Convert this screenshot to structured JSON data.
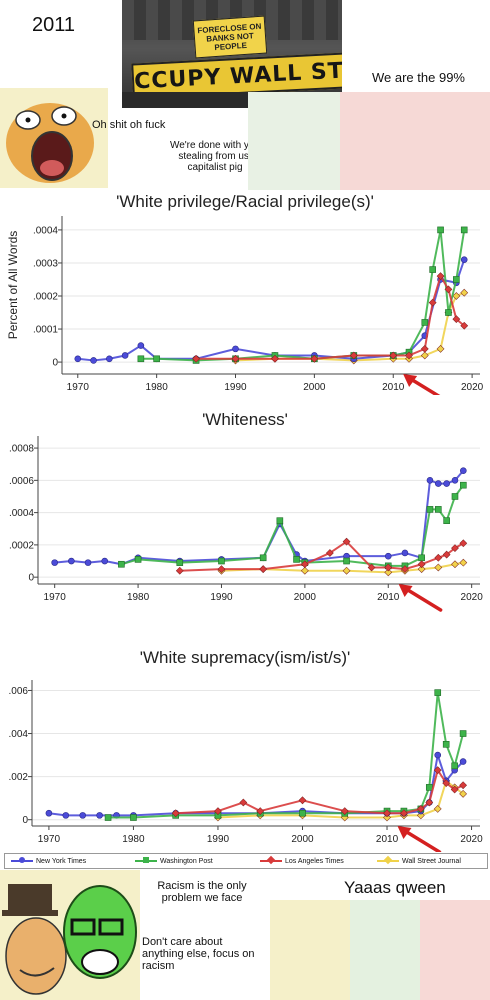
{
  "top_meme": {
    "year": "2011",
    "sign_text": "FORECLOSE ON BANKS NOT PEOPLE",
    "banner_text": "CCUPY WALL ST",
    "exclaim": "Oh shit oh fuck",
    "speech": "We're done with you stealing from us, capitalist pig",
    "slogan": "We are the 99%"
  },
  "ylabel": "Percent of All Words",
  "chart_data": [
    {
      "type": "line",
      "title": "'White privilege/Racial privilege(s)'",
      "xlabel": "",
      "ylabel": "Percent of All Words",
      "xlim": [
        1968,
        2021
      ],
      "ylim": [
        -3e-05,
        0.00043
      ],
      "xticks": [
        "1970",
        "1980",
        "1990",
        "2000",
        "2010",
        "2020"
      ],
      "yticks": [
        ".0004",
        ".0003",
        ".0002",
        ".0001",
        "0"
      ],
      "series": [
        {
          "name": "New York Times",
          "color": "#4b4bd8",
          "x": [
            1970,
            1972,
            1974,
            1976,
            1978,
            1980,
            1985,
            1990,
            1995,
            2000,
            2005,
            2010,
            2012,
            2014,
            2016,
            2018,
            2019
          ],
          "y": [
            1e-05,
            5e-06,
            1e-05,
            2e-05,
            5e-05,
            1e-05,
            1e-05,
            4e-05,
            2e-05,
            2e-05,
            1e-05,
            2e-05,
            3e-05,
            8e-05,
            0.00025,
            0.00024,
            0.00031
          ]
        },
        {
          "name": "Washington Post",
          "color": "#3db34a",
          "x": [
            1978,
            1980,
            1985,
            1990,
            1995,
            2000,
            2005,
            2010,
            2012,
            2014,
            2015,
            2016,
            2017,
            2018,
            2019
          ],
          "y": [
            1e-05,
            1e-05,
            5e-06,
            1e-05,
            2e-05,
            1e-05,
            2e-05,
            2e-05,
            3e-05,
            0.00012,
            0.00028,
            0.0004,
            0.00015,
            0.00025,
            0.0004
          ]
        },
        {
          "name": "Los Angeles Times",
          "color": "#d83b3b",
          "x": [
            1985,
            1990,
            1995,
            2000,
            2005,
            2010,
            2012,
            2014,
            2015,
            2016,
            2017,
            2018,
            2019
          ],
          "y": [
            1e-05,
            1e-05,
            1e-05,
            1e-05,
            2e-05,
            2e-05,
            2e-05,
            4e-05,
            0.00018,
            0.00026,
            0.00022,
            0.00013,
            0.00011
          ]
        },
        {
          "name": "Wall Street Journal",
          "color": "#f0d24a",
          "x": [
            1990,
            1995,
            2000,
            2005,
            2010,
            2012,
            2014,
            2016,
            2017,
            2018,
            2019
          ],
          "y": [
            5e-06,
            1e-05,
            1e-05,
            5e-06,
            1e-05,
            1e-05,
            2e-05,
            4e-05,
            0.00015,
            0.0002,
            0.00021
          ]
        }
      ]
    },
    {
      "type": "line",
      "title": "'Whiteness'",
      "xlabel": "",
      "ylabel": "",
      "xlim": [
        1968,
        2021
      ],
      "ylim": [
        -3e-05,
        0.00085
      ],
      "xticks": [
        "1970",
        "1980",
        "1990",
        "2000",
        "2010",
        "2020"
      ],
      "yticks": [
        ".0008",
        ".0006",
        ".0004",
        ".0002",
        "0"
      ],
      "series": [
        {
          "name": "New York Times",
          "color": "#4b4bd8",
          "x": [
            1970,
            1972,
            1974,
            1976,
            1978,
            1980,
            1985,
            1990,
            1995,
            1997,
            1999,
            2000,
            2005,
            2010,
            2012,
            2014,
            2015,
            2016,
            2017,
            2018,
            2019
          ],
          "y": [
            9e-05,
            0.0001,
            9e-05,
            0.0001,
            8e-05,
            0.00012,
            0.0001,
            0.00011,
            0.00012,
            0.00033,
            0.00014,
            0.0001,
            0.00013,
            0.00013,
            0.00015,
            0.00012,
            0.0006,
            0.00058,
            0.00058,
            0.0006,
            0.00066
          ]
        },
        {
          "name": "Washington Post",
          "color": "#3db34a",
          "x": [
            1978,
            1980,
            1985,
            1990,
            1995,
            1997,
            1999,
            2000,
            2005,
            2010,
            2012,
            2014,
            2015,
            2016,
            2017,
            2018,
            2019
          ],
          "y": [
            8e-05,
            0.00011,
            9e-05,
            0.0001,
            0.00012,
            0.00035,
            0.00011,
            9e-05,
            0.0001,
            7e-05,
            7e-05,
            0.00012,
            0.00042,
            0.00042,
            0.00035,
            0.0005,
            0.00057
          ]
        },
        {
          "name": "Los Angeles Times",
          "color": "#d83b3b",
          "x": [
            1985,
            1990,
            1995,
            2000,
            2003,
            2005,
            2008,
            2010,
            2012,
            2014,
            2016,
            2017,
            2018,
            2019
          ],
          "y": [
            4e-05,
            5e-05,
            5e-05,
            8e-05,
            0.00015,
            0.00022,
            6e-05,
            6e-05,
            5e-05,
            8e-05,
            0.00012,
            0.00014,
            0.00018,
            0.00021
          ]
        },
        {
          "name": "Wall Street Journal",
          "color": "#f0d24a",
          "x": [
            1990,
            1995,
            2000,
            2005,
            2010,
            2012,
            2014,
            2016,
            2018,
            2019
          ],
          "y": [
            4e-05,
            5e-05,
            4e-05,
            4e-05,
            3e-05,
            4e-05,
            5e-05,
            6e-05,
            8e-05,
            9e-05
          ]
        }
      ]
    },
    {
      "type": "line",
      "title": "'White supremacy(ism/ist/s)'",
      "xlabel": "",
      "ylabel": "",
      "xlim": [
        1968,
        2021
      ],
      "ylim": [
        -0.0002,
        0.0063
      ],
      "xticks": [
        "1970",
        "1980",
        "1990",
        "2000",
        "2010",
        "2020"
      ],
      "yticks": [
        ".006",
        ".004",
        ".002",
        "0"
      ],
      "series": [
        {
          "name": "New York Times",
          "color": "#4b4bd8",
          "x": [
            1970,
            1972,
            1974,
            1976,
            1978,
            1980,
            1985,
            1990,
            1995,
            2000,
            2005,
            2010,
            2012,
            2014,
            2015,
            2016,
            2017,
            2018,
            2019
          ],
          "y": [
            0.0003,
            0.0002,
            0.0002,
            0.0002,
            0.0002,
            0.0002,
            0.0003,
            0.0003,
            0.0003,
            0.0004,
            0.0003,
            0.0003,
            0.0003,
            0.0004,
            0.0008,
            0.003,
            0.0018,
            0.0023,
            0.0027
          ]
        },
        {
          "name": "Washington Post",
          "color": "#3db34a",
          "x": [
            1977,
            1980,
            1985,
            1990,
            1995,
            2000,
            2005,
            2010,
            2012,
            2014,
            2015,
            2016,
            2017,
            2018,
            2019
          ],
          "y": [
            0.0001,
            0.0001,
            0.0002,
            0.0002,
            0.0003,
            0.0003,
            0.0003,
            0.0004,
            0.0004,
            0.0005,
            0.0015,
            0.0059,
            0.0035,
            0.0025,
            0.004
          ]
        },
        {
          "name": "Los Angeles Times",
          "color": "#d83b3b",
          "x": [
            1985,
            1990,
            1993,
            1995,
            2000,
            2005,
            2010,
            2012,
            2014,
            2015,
            2016,
            2017,
            2018,
            2019
          ],
          "y": [
            0.0003,
            0.0004,
            0.0008,
            0.0004,
            0.0009,
            0.0004,
            0.0003,
            0.0003,
            0.0005,
            0.0008,
            0.0023,
            0.0017,
            0.0014,
            0.0016
          ]
        },
        {
          "name": "Wall Street Journal",
          "color": "#f0d24a",
          "x": [
            1990,
            1995,
            2000,
            2005,
            2010,
            2012,
            2014,
            2016,
            2017,
            2018,
            2019
          ],
          "y": [
            0.0001,
            0.0002,
            0.0002,
            0.0001,
            0.0001,
            0.0002,
            0.0002,
            0.0005,
            0.0018,
            0.0015,
            0.0012
          ]
        }
      ]
    }
  ],
  "legend": [
    "New York Times",
    "Washington Post",
    "Los Angeles Times",
    "Wall Street Journal"
  ],
  "bottom_meme": {
    "caption1": "Racism is the only problem we face",
    "caption2": "Don't care about anything else, focus on racism",
    "caption3": "Yaaas qween"
  },
  "colors": {
    "nyt": "#4b4bd8",
    "wapo": "#3db34a",
    "lat": "#d83b3b",
    "wsj": "#f0d24a",
    "arrow": "#d42020"
  }
}
